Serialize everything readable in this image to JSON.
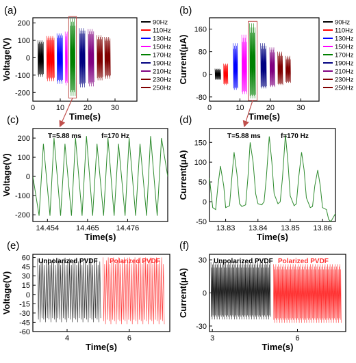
{
  "panel_labels": [
    "(a)",
    "(b)",
    "(c)",
    "(d)",
    "(e)",
    "(f)"
  ],
  "colors": {
    "90Hz": "#000000",
    "110Hz": "#ff0000",
    "130Hz": "#0000ff",
    "150Hz": "#ff00ff",
    "170Hz": "#008000",
    "190Hz": "#000080",
    "210Hz": "#800080",
    "230Hz": "#800000",
    "250Hz": "#800000",
    "zoom_arrow": "#c0504d",
    "c_line": "#2e8b2e",
    "d_line": "#2e8b2e",
    "unpolarized": "#222222",
    "polarized": "#ff3333"
  },
  "chart_data": [
    {
      "id": "a",
      "type": "line",
      "xlabel": "Time(s)",
      "ylabel": "Voltage(V)",
      "xlim": [
        0,
        38
      ],
      "ylim": [
        -250,
        230
      ],
      "xticks": [
        0,
        10,
        20,
        30
      ],
      "yticks": [
        -200,
        -100,
        0,
        100,
        200
      ],
      "legend": [
        "90Hz",
        "110Hz",
        "130Hz",
        "150Hz",
        "170Hz",
        "190Hz",
        "210Hz",
        "230Hz",
        "250Hz"
      ],
      "legend_position": "right",
      "series": [
        {
          "name": "90Hz",
          "x": [
            1.8,
            3.8
          ],
          "ymax": 100,
          "ymin": -110
        },
        {
          "name": "110Hz",
          "x": [
            5.0,
            7.8
          ],
          "ymax": 125,
          "ymin": -135
        },
        {
          "name": "130Hz",
          "x": [
            8.8,
            10.8
          ],
          "ymax": 140,
          "ymin": -150
        },
        {
          "name": "150Hz",
          "x": [
            11.8,
            12.6
          ],
          "ymax": 150,
          "ymin": -160
        },
        {
          "name": "170Hz",
          "x": [
            13.6,
            15.4
          ],
          "ymax": 225,
          "ymin": -220
        },
        {
          "name": "190Hz",
          "x": [
            17.0,
            19.2
          ],
          "ymax": 170,
          "ymin": -170
        },
        {
          "name": "210Hz",
          "x": [
            20.2,
            22.4
          ],
          "ymax": 165,
          "ymin": -165
        },
        {
          "name": "230Hz",
          "x": [
            23.4,
            25.4
          ],
          "ymax": 130,
          "ymin": -130
        },
        {
          "name": "250Hz",
          "x": [
            26.2,
            28.2
          ],
          "ymax": 120,
          "ymin": -120
        }
      ]
    },
    {
      "id": "b",
      "type": "line",
      "xlabel": "Time(s)",
      "ylabel": "Current(μA)",
      "xlim": [
        0,
        36
      ],
      "ylim": [
        -95,
        200
      ],
      "xticks": [
        0,
        10,
        20,
        30
      ],
      "yticks": [
        -80,
        0,
        80,
        160
      ],
      "legend": [
        "90Hz",
        "110Hz",
        "130Hz",
        "150Hz",
        "170Hz",
        "190Hz",
        "210Hz",
        "230Hz",
        "250Hz"
      ],
      "legend_position": "right",
      "series": [
        {
          "name": "90Hz",
          "x": [
            1.8,
            3.6
          ],
          "ymax": 20,
          "ymin": -20
        },
        {
          "name": "110Hz",
          "x": [
            4.6,
            6.0
          ],
          "ymax": 38,
          "ymin": -38
        },
        {
          "name": "130Hz",
          "x": [
            7.8,
            9.2
          ],
          "ymax": 110,
          "ymin": -55
        },
        {
          "name": "150Hz",
          "x": [
            10.6,
            12.2
          ],
          "ymax": 140,
          "ymin": -70
        },
        {
          "name": "170Hz",
          "x": [
            13.2,
            15.2
          ],
          "ymax": 180,
          "ymin": -85
        },
        {
          "name": "190Hz",
          "x": [
            16.8,
            18.6
          ],
          "ymax": 110,
          "ymin": -50
        },
        {
          "name": "210Hz",
          "x": [
            19.8,
            21.4
          ],
          "ymax": 95,
          "ymin": -45
        },
        {
          "name": "230Hz",
          "x": [
            22.4,
            24.0
          ],
          "ymax": 80,
          "ymin": -38
        },
        {
          "name": "250Hz",
          "x": [
            25.0,
            26.6
          ],
          "ymax": 65,
          "ymin": -30
        }
      ]
    },
    {
      "id": "c",
      "type": "line",
      "xlabel": "Time(s)",
      "ylabel": "Voltage(V)",
      "xlim": [
        14.45,
        14.487
      ],
      "ylim": [
        -235,
        250
      ],
      "xticks": [
        14.454,
        14.465,
        14.476
      ],
      "yticks": [
        -200,
        -100,
        0,
        100,
        200
      ],
      "annotations": [
        "T=5.88 ms",
        "f=170 Hz"
      ],
      "series": [
        {
          "x": [
            14.45,
            14.4517,
            14.4529,
            14.4547,
            14.4558,
            14.4576,
            14.4588,
            14.4606,
            14.4617,
            14.4635,
            14.4647,
            14.4664,
            14.4676,
            14.4694,
            14.4706,
            14.4723,
            14.4735,
            14.4753,
            14.4764,
            14.4782,
            14.4794,
            14.4812,
            14.4823,
            14.4841,
            14.4853,
            14.487
          ],
          "y": [
            0,
            -205,
            170,
            -205,
            200,
            -205,
            170,
            -205,
            200,
            -205,
            210,
            -205,
            170,
            -205,
            200,
            -205,
            170,
            -205,
            200,
            -205,
            170,
            -205,
            210,
            -205,
            200,
            0
          ]
        }
      ]
    },
    {
      "id": "d",
      "type": "line",
      "xlabel": "Time(s)",
      "ylabel": "Current(μA)",
      "xlim": [
        13.825,
        13.864
      ],
      "ylim": [
        -50,
        185
      ],
      "xticks": [
        13.83,
        13.84,
        13.85,
        13.86
      ],
      "yticks": [
        -50,
        0,
        50,
        100,
        150
      ],
      "annotations": [
        "T=5.88 ms",
        "f=170 Hz"
      ],
      "series": [
        {
          "x": [
            13.825,
            13.826,
            13.8269,
            13.8276,
            13.8284,
            13.8294,
            13.83,
            13.8312,
            13.8319,
            13.8326,
            13.8335,
            13.8343,
            13.835,
            13.8362,
            13.8369,
            13.8376,
            13.8385,
            13.8393,
            13.84,
            13.8412,
            13.8419,
            13.8426,
            13.8435,
            13.8443,
            13.845,
            13.8462,
            13.8469,
            13.8476,
            13.8485,
            13.8493,
            13.85,
            13.8512,
            13.8519,
            13.8526,
            13.8535,
            13.8543,
            13.855,
            13.8562,
            13.8569,
            13.8576,
            13.8585,
            13.8593,
            13.86,
            13.8612,
            13.8619,
            13.8626,
            13.864
          ],
          "y": [
            60,
            -15,
            -20,
            40,
            90,
            40,
            -15,
            -10,
            60,
            125,
            70,
            -5,
            -12,
            -8,
            60,
            150,
            100,
            20,
            -5,
            -8,
            0,
            60,
            165,
            100,
            20,
            -5,
            0,
            60,
            170,
            100,
            15,
            -10,
            -5,
            60,
            125,
            80,
            10,
            -15,
            -12,
            40,
            80,
            40,
            -15,
            -20,
            -45,
            -50,
            -30
          ]
        }
      ]
    },
    {
      "id": "e",
      "type": "line",
      "xlabel": "Time(s)",
      "ylabel": "Voltage(V)",
      "xlim": [
        2.9,
        7.3
      ],
      "ylim": [
        -60,
        65
      ],
      "xticks": [
        4,
        6
      ],
      "yticks": [
        -60,
        -45,
        -30,
        -15,
        0,
        15,
        30,
        45,
        60
      ],
      "legend": [
        "Unpolarized PVDF",
        "Polarized  PVDF"
      ],
      "legend_position": "top",
      "series": [
        {
          "name": "Unpolarized PVDF",
          "x": [
            3.05,
            5.1
          ],
          "ymax": 58,
          "ymin": -45
        },
        {
          "name": "Polarized  PVDF",
          "x": [
            5.15,
            7.15
          ],
          "ymax": 60,
          "ymin": -48
        }
      ]
    },
    {
      "id": "f",
      "type": "line",
      "xlabel": "Time(s)",
      "ylabel": "Current(μA)",
      "xlim": [
        2.9,
        7.7
      ],
      "ylim": [
        -35,
        35
      ],
      "xticks": [
        3,
        6
      ],
      "yticks": [
        -30,
        0,
        30
      ],
      "legend": [
        "Unpolarized PVDF",
        "Polarized  PVDF"
      ],
      "legend_position": "top",
      "series": [
        {
          "name": "Unpolarized PVDF",
          "x": [
            2.95,
            5.05
          ],
          "ymax": 28,
          "ymin": -24
        },
        {
          "name": "Polarized  PVDF",
          "x": [
            5.15,
            7.55
          ],
          "ymax": 26,
          "ymin": -27
        }
      ]
    }
  ]
}
